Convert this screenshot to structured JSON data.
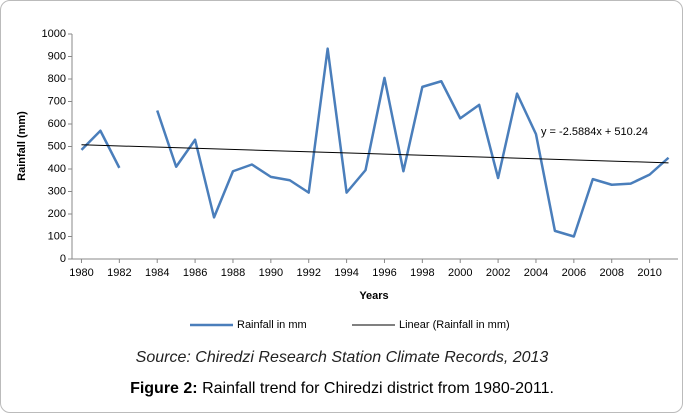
{
  "chart_data": {
    "type": "line",
    "y_label": "Rainfall  (mm)",
    "x_label": "Years",
    "x": [
      1980,
      1981,
      1982,
      1983,
      1984,
      1985,
      1986,
      1987,
      1988,
      1989,
      1990,
      1991,
      1992,
      1993,
      1994,
      1995,
      1996,
      1997,
      1998,
      1999,
      2000,
      2001,
      2002,
      2003,
      2004,
      2005,
      2006,
      2007,
      2008,
      2009,
      2010,
      2011
    ],
    "series": [
      {
        "name": "Rainfall in mm",
        "color": "#4a7ebb",
        "values": [
          485,
          570,
          405,
          null,
          660,
          410,
          530,
          185,
          390,
          420,
          365,
          350,
          295,
          935,
          295,
          395,
          805,
          390,
          765,
          790,
          625,
          685,
          360,
          735,
          555,
          125,
          100,
          355,
          330,
          335,
          375,
          450
        ]
      }
    ],
    "trendline": {
      "name": "Linear (Rainfall in mm)",
      "color": "#000000",
      "slope": -2.5884,
      "intercept": 510.24,
      "equation_label": "y = -2.5884x + 510.24"
    },
    "xlim": [
      1979.5,
      2011.5
    ],
    "xticks": [
      1980,
      1982,
      1984,
      1986,
      1988,
      1990,
      1992,
      1994,
      1996,
      1998,
      2000,
      2002,
      2004,
      2006,
      2008,
      2010
    ],
    "ylim": [
      0,
      1000
    ],
    "yticks": [
      0,
      100,
      200,
      300,
      400,
      500,
      600,
      700,
      800,
      900,
      1000
    ],
    "legend": "bottom"
  },
  "source": "Source: Chiredzi Research Station Climate Records, 2013",
  "figure": {
    "label": "Figure 2:",
    "caption": "Rainfall trend for Chiredzi district from 1980-2011."
  }
}
